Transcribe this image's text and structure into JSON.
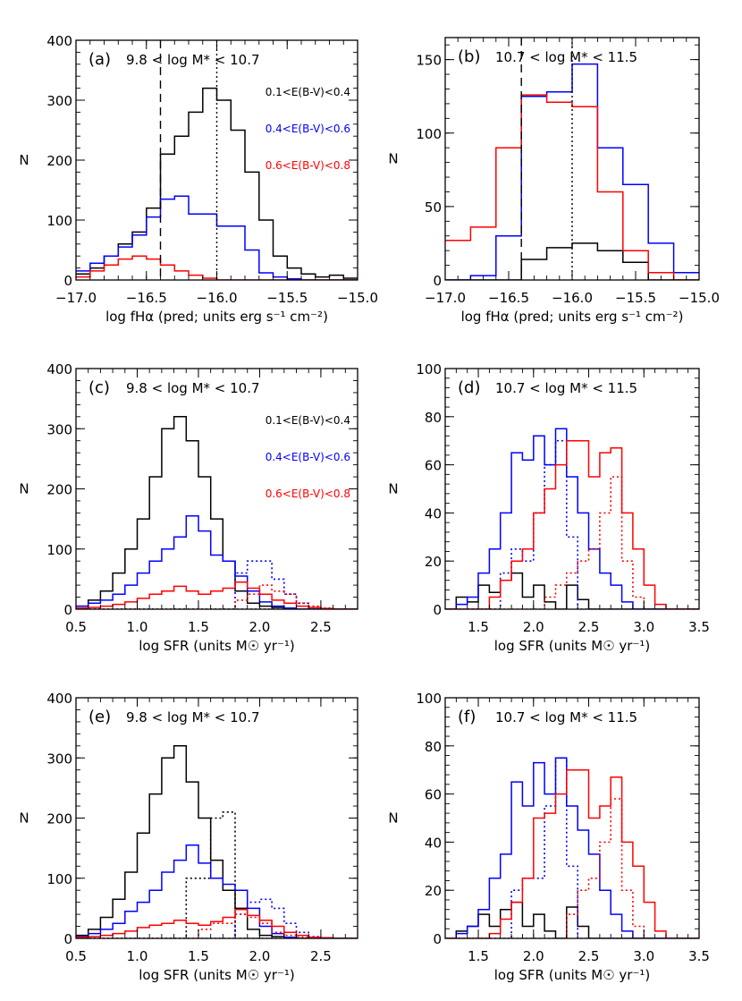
{
  "colors": {
    "black": "#000000",
    "blue": "#0000ff",
    "red": "#ff0000"
  },
  "legend_labels": [
    "0.1<E(B-V)<0.4",
    "0.4<E(B-V)<0.6",
    "0.6<E(B-V)<0.8"
  ],
  "chart_data": [
    {
      "panel": "(a)",
      "type": "histogram",
      "title": "9.8 < log M* < 10.7",
      "xlabel": "log fHα (pred; units erg s⁻¹ cm⁻²)",
      "ylabel": "N",
      "xlim": [
        -17.0,
        -15.0
      ],
      "ylim": [
        0,
        400
      ],
      "xticks": [
        -17.0,
        -16.5,
        -16.0,
        -15.5,
        -15.0
      ],
      "xtick_labels": [
        "−17.0",
        "−16.5",
        "−16.0",
        "−15.5",
        "−15.0"
      ],
      "yticks": [
        0,
        100,
        200,
        300,
        400
      ],
      "ytick_labels": [
        "0",
        "100",
        "200",
        "300",
        "400"
      ],
      "legend": true,
      "vlines": [
        {
          "x": -16.4,
          "style": "dashed"
        },
        {
          "x": -16.0,
          "style": "dotted"
        }
      ],
      "bin_width": 0.1,
      "x_start": -17.0,
      "series": [
        {
          "color": "black",
          "style": "solid",
          "values": [
            10,
            20,
            40,
            60,
            80,
            120,
            210,
            240,
            280,
            320,
            300,
            250,
            180,
            100,
            40,
            20,
            10,
            5,
            8,
            3
          ]
        },
        {
          "color": "blue",
          "style": "solid",
          "values": [
            15,
            28,
            40,
            55,
            75,
            105,
            135,
            140,
            110,
            110,
            90,
            90,
            50,
            12,
            5,
            2,
            0,
            0,
            0,
            0
          ]
        },
        {
          "color": "red",
          "style": "solid",
          "values": [
            5,
            15,
            25,
            35,
            40,
            35,
            25,
            15,
            8,
            3,
            0,
            0,
            0,
            0,
            0,
            0,
            0,
            0,
            0,
            0
          ]
        }
      ]
    },
    {
      "panel": "(b)",
      "type": "histogram",
      "title": "10.7 < log M* < 11.5",
      "xlabel": "log fHα (pred; units erg s⁻¹ cm⁻²)",
      "ylabel": "N",
      "xlim": [
        -17.0,
        -15.0
      ],
      "ylim": [
        0,
        165
      ],
      "xticks": [
        -17.0,
        -16.5,
        -16.0,
        -15.5,
        -15.0
      ],
      "xtick_labels": [
        "−17.0",
        "−16.5",
        "−16.0",
        "−15.5",
        "−15.0"
      ],
      "yticks": [
        0,
        50,
        100,
        150
      ],
      "ytick_labels": [
        "0",
        "50",
        "100",
        "150"
      ],
      "legend": false,
      "vlines": [
        {
          "x": -16.4,
          "style": "dashed"
        },
        {
          "x": -16.0,
          "style": "dotted"
        }
      ],
      "bin_width": 0.2,
      "x_start": -17.0,
      "series": [
        {
          "color": "black",
          "style": "solid",
          "values": [
            0,
            0,
            0,
            14,
            22,
            25,
            20,
            12,
            0,
            0
          ]
        },
        {
          "color": "blue",
          "style": "solid",
          "values": [
            0,
            3,
            30,
            125,
            128,
            147,
            90,
            65,
            25,
            5
          ]
        },
        {
          "color": "red",
          "style": "solid",
          "values": [
            27,
            36,
            90,
            126,
            121,
            118,
            60,
            20,
            5,
            0
          ]
        }
      ]
    },
    {
      "panel": "(c)",
      "type": "histogram",
      "title": "9.8 < log M* < 10.7",
      "xlabel": "log SFR (units M☉ yr⁻¹)",
      "ylabel": "N",
      "xlim": [
        0.5,
        2.8
      ],
      "ylim": [
        0,
        400
      ],
      "xticks": [
        0.5,
        1.0,
        1.5,
        2.0,
        2.5
      ],
      "xtick_labels": [
        "0.5",
        "1.0",
        "1.5",
        "2.0",
        "2.5"
      ],
      "yticks": [
        0,
        100,
        200,
        300,
        400
      ],
      "ytick_labels": [
        "0",
        "100",
        "200",
        "300",
        "400"
      ],
      "legend": true,
      "bin_width": 0.1,
      "x_start": 0.5,
      "series": [
        {
          "color": "black",
          "style": "solid",
          "values": [
            5,
            15,
            30,
            60,
            100,
            150,
            220,
            300,
            320,
            280,
            220,
            150,
            80,
            30,
            10,
            5,
            3,
            0,
            0,
            0,
            0,
            0,
            0
          ]
        },
        {
          "color": "black",
          "style": "dotted",
          "values": [
            0,
            0,
            0,
            0,
            0,
            0,
            0,
            0,
            0,
            0,
            0,
            0,
            0,
            0,
            0,
            0,
            0,
            0,
            0,
            0,
            0,
            0,
            0
          ]
        },
        {
          "color": "blue",
          "style": "solid",
          "values": [
            5,
            10,
            15,
            25,
            40,
            60,
            80,
            100,
            120,
            155,
            130,
            90,
            80,
            55,
            30,
            12,
            5,
            2,
            0,
            0,
            0,
            0,
            0
          ]
        },
        {
          "color": "blue",
          "style": "dotted",
          "values": [
            0,
            0,
            0,
            0,
            0,
            0,
            0,
            0,
            0,
            0,
            0,
            0,
            0,
            60,
            80,
            80,
            50,
            25,
            10,
            3,
            0,
            0,
            0
          ]
        },
        {
          "color": "red",
          "style": "solid",
          "values": [
            2,
            3,
            5,
            8,
            12,
            18,
            25,
            30,
            38,
            30,
            25,
            30,
            35,
            45,
            35,
            25,
            15,
            10,
            5,
            3,
            1,
            0,
            0
          ]
        },
        {
          "color": "red",
          "style": "dotted",
          "values": [
            0,
            0,
            0,
            0,
            0,
            0,
            0,
            0,
            0,
            0,
            0,
            0,
            0,
            15,
            25,
            40,
            30,
            25,
            10,
            5,
            2,
            0,
            0
          ]
        }
      ]
    },
    {
      "panel": "(d)",
      "type": "histogram",
      "title": "10.7 < log M* < 11.5",
      "xlabel": "log SFR (units M☉ yr⁻¹)",
      "ylabel": "N",
      "xlim": [
        1.2,
        3.5
      ],
      "ylim": [
        0,
        100
      ],
      "xticks": [
        1.5,
        2.0,
        2.5,
        3.0,
        3.5
      ],
      "xtick_labels": [
        "1.5",
        "2.0",
        "2.5",
        "3.0",
        "3.5"
      ],
      "yticks": [
        0,
        20,
        40,
        60,
        80,
        100
      ],
      "ytick_labels": [
        "0",
        "20",
        "40",
        "60",
        "80",
        "100"
      ],
      "legend": false,
      "bin_width": 0.1,
      "x_start": 1.2,
      "series": [
        {
          "color": "black",
          "style": "solid",
          "values": [
            0,
            5,
            3,
            10,
            7,
            12,
            15,
            5,
            10,
            3,
            0,
            10,
            4,
            0,
            0,
            0,
            0,
            0,
            0,
            0,
            0,
            0,
            0
          ]
        },
        {
          "color": "blue",
          "style": "solid",
          "values": [
            0,
            2,
            5,
            15,
            25,
            40,
            65,
            62,
            72,
            60,
            75,
            55,
            40,
            25,
            15,
            10,
            3,
            0,
            0,
            0,
            0,
            0,
            0
          ]
        },
        {
          "color": "blue",
          "style": "dotted",
          "values": [
            0,
            0,
            0,
            0,
            0,
            15,
            25,
            20,
            40,
            60,
            70,
            30,
            0,
            0,
            0,
            0,
            0,
            0,
            0,
            0,
            0,
            0,
            0
          ]
        },
        {
          "color": "red",
          "style": "solid",
          "values": [
            0,
            0,
            0,
            0,
            5,
            12,
            20,
            25,
            40,
            50,
            60,
            70,
            70,
            55,
            65,
            67,
            40,
            25,
            10,
            2,
            0,
            0,
            0
          ]
        },
        {
          "color": "red",
          "style": "dotted",
          "values": [
            0,
            0,
            0,
            0,
            0,
            0,
            0,
            0,
            0,
            5,
            10,
            15,
            20,
            25,
            40,
            55,
            20,
            5,
            0,
            0,
            0,
            0,
            0
          ]
        }
      ]
    },
    {
      "panel": "(e)",
      "type": "histogram",
      "title": "9.8 < log M* < 10.7",
      "xlabel": "log SFR (units M☉ yr⁻¹)",
      "ylabel": "N",
      "xlim": [
        0.5,
        2.8
      ],
      "ylim": [
        0,
        400
      ],
      "xticks": [
        0.5,
        1.0,
        1.5,
        2.0,
        2.5
      ],
      "xtick_labels": [
        "0.5",
        "1.0",
        "1.5",
        "2.0",
        "2.5"
      ],
      "yticks": [
        0,
        100,
        200,
        300,
        400
      ],
      "ytick_labels": [
        "0",
        "100",
        "200",
        "300",
        "400"
      ],
      "legend": false,
      "bin_width": 0.1,
      "x_start": 0.5,
      "series": [
        {
          "color": "black",
          "style": "solid",
          "values": [
            5,
            15,
            35,
            65,
            110,
            175,
            240,
            300,
            320,
            260,
            200,
            130,
            80,
            50,
            15,
            5,
            3,
            0,
            0,
            0,
            0,
            0,
            0
          ]
        },
        {
          "color": "black",
          "style": "dotted",
          "values": [
            0,
            0,
            0,
            0,
            0,
            0,
            0,
            0,
            0,
            100,
            100,
            200,
            210,
            0,
            0,
            0,
            0,
            0,
            0,
            0,
            0,
            0,
            0
          ]
        },
        {
          "color": "blue",
          "style": "solid",
          "values": [
            3,
            8,
            15,
            25,
            45,
            60,
            80,
            110,
            130,
            155,
            125,
            100,
            90,
            80,
            50,
            20,
            8,
            2,
            0,
            0,
            0,
            0,
            0
          ]
        },
        {
          "color": "blue",
          "style": "dotted",
          "values": [
            0,
            0,
            0,
            0,
            0,
            0,
            0,
            0,
            0,
            0,
            0,
            0,
            0,
            40,
            60,
            65,
            50,
            25,
            10,
            3,
            0,
            0,
            0
          ]
        },
        {
          "color": "red",
          "style": "solid",
          "values": [
            2,
            3,
            5,
            8,
            12,
            18,
            22,
            25,
            30,
            25,
            22,
            28,
            35,
            48,
            38,
            30,
            20,
            10,
            5,
            2,
            1,
            0,
            0
          ]
        },
        {
          "color": "red",
          "style": "dotted",
          "values": [
            0,
            0,
            0,
            0,
            0,
            0,
            0,
            0,
            0,
            0,
            15,
            25,
            25,
            40,
            35,
            25,
            10,
            5,
            2,
            0,
            0,
            0,
            0
          ]
        }
      ]
    },
    {
      "panel": "(f)",
      "type": "histogram",
      "title": "10.7 < log M* < 11.5",
      "xlabel": "log SFR (units M☉ yr⁻¹)",
      "ylabel": "N",
      "xlim": [
        1.2,
        3.5
      ],
      "ylim": [
        0,
        100
      ],
      "xticks": [
        1.5,
        2.0,
        2.5,
        3.0,
        3.5
      ],
      "xtick_labels": [
        "1.5",
        "2.0",
        "2.5",
        "3.0",
        "3.5"
      ],
      "yticks": [
        0,
        20,
        40,
        60,
        80,
        100
      ],
      "ytick_labels": [
        "0",
        "20",
        "40",
        "60",
        "80",
        "100"
      ],
      "legend": false,
      "bin_width": 0.1,
      "x_start": 1.2,
      "series": [
        {
          "color": "black",
          "style": "solid",
          "values": [
            0,
            3,
            5,
            10,
            5,
            12,
            15,
            5,
            10,
            3,
            0,
            13,
            5,
            0,
            0,
            0,
            0,
            0,
            0,
            0,
            0,
            0,
            0
          ]
        },
        {
          "color": "blue",
          "style": "solid",
          "values": [
            0,
            2,
            5,
            12,
            25,
            35,
            65,
            55,
            73,
            60,
            75,
            55,
            45,
            35,
            20,
            10,
            3,
            0,
            0,
            0,
            0,
            0,
            0
          ]
        },
        {
          "color": "blue",
          "style": "dotted",
          "values": [
            0,
            0,
            0,
            0,
            0,
            0,
            20,
            25,
            25,
            55,
            75,
            30,
            0,
            0,
            0,
            0,
            0,
            0,
            0,
            0,
            0,
            0,
            0
          ]
        },
        {
          "color": "red",
          "style": "solid",
          "values": [
            0,
            0,
            0,
            0,
            2,
            8,
            15,
            25,
            50,
            52,
            60,
            70,
            70,
            50,
            55,
            67,
            40,
            30,
            15,
            3,
            0,
            0,
            0
          ]
        },
        {
          "color": "red",
          "style": "dotted",
          "values": [
            0,
            0,
            0,
            0,
            0,
            0,
            0,
            0,
            0,
            0,
            0,
            10,
            20,
            25,
            40,
            58,
            20,
            5,
            0,
            0,
            0,
            0,
            0
          ]
        }
      ]
    }
  ]
}
